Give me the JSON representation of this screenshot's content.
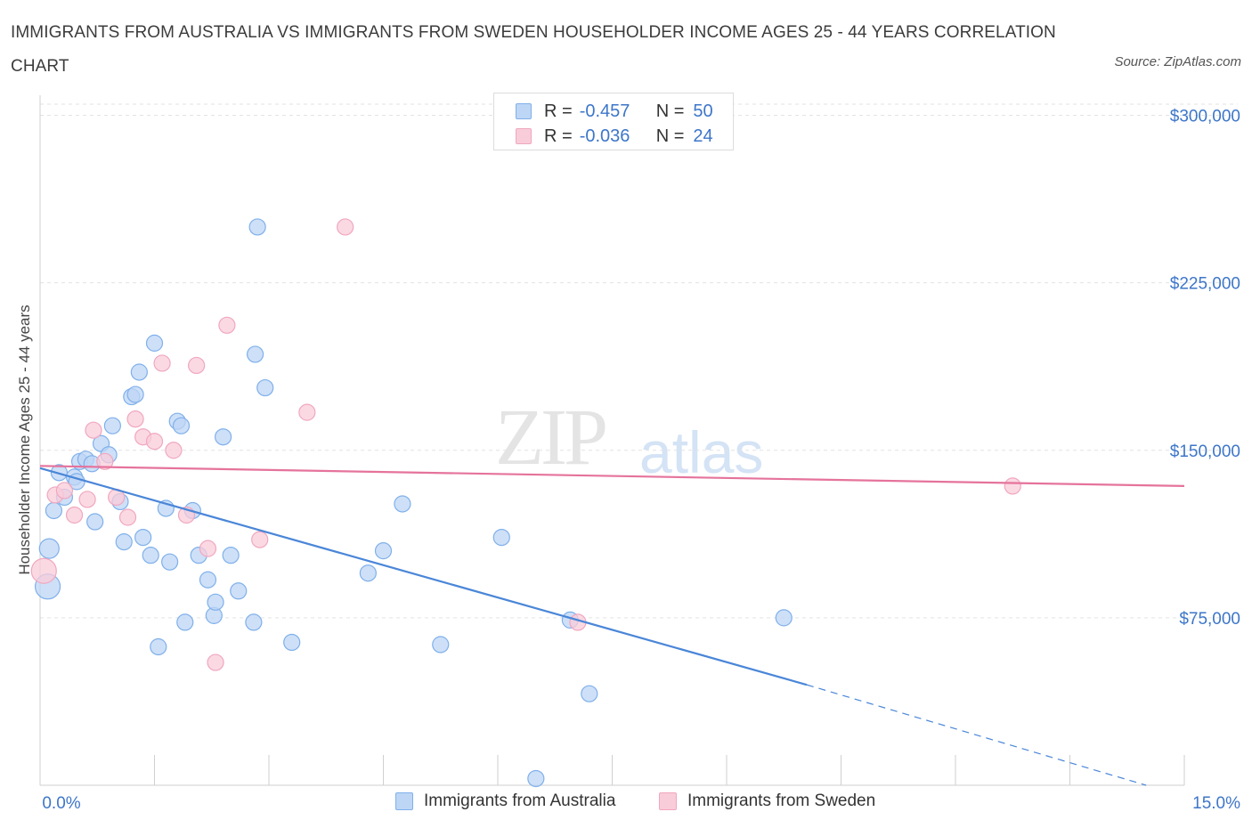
{
  "title": "IMMIGRANTS FROM AUSTRALIA VS IMMIGRANTS FROM SWEDEN HOUSEHOLDER INCOME AGES 25 - 44 YEARS CORRELATION CHART",
  "source": "Source: ZipAtlas.com",
  "watermark": {
    "zip": "ZIP",
    "atlas": "atlas"
  },
  "legend": {
    "r_label": "R =",
    "n_label": "N =",
    "rows": [
      {
        "r": "-0.457",
        "n": "50",
        "color": "#7fb0ea",
        "fill": "#bdd6f5"
      },
      {
        "r": "-0.036",
        "n": "24",
        "color": "#f0a7bf",
        "fill": "#f9ccd9"
      }
    ]
  },
  "chart_data": {
    "type": "scatter",
    "title": "IMMIGRANTS FROM AUSTRALIA VS IMMIGRANTS FROM SWEDEN HOUSEHOLDER INCOME AGES 25 - 44 YEARS CORRELATION CHART",
    "xlabel": "",
    "ylabel": "Householder Income Ages 25 - 44 years",
    "x_tick_labels": [
      "0.0%",
      "15.0%"
    ],
    "y_tick_labels": [
      "$300,000",
      "$225,000",
      "$150,000",
      "$75,000"
    ],
    "y_ticks": [
      300000,
      225000,
      150000,
      75000
    ],
    "xlim": [
      0,
      15
    ],
    "ylim": [
      0,
      305000
    ],
    "grid": true,
    "legend_position": "top-center",
    "series": [
      {
        "name": "Immigrants from Australia",
        "color": "#4a86d8",
        "fill": "#bdd6f5",
        "stroke": "#7fb0ea",
        "points": [
          [
            0.1,
            89000,
            14
          ],
          [
            0.12,
            106000,
            11
          ],
          [
            0.18,
            123000,
            9
          ],
          [
            0.25,
            140000,
            9
          ],
          [
            0.32,
            129000,
            9
          ],
          [
            0.45,
            138000,
            9
          ],
          [
            0.48,
            136000,
            9
          ],
          [
            0.52,
            145000,
            9
          ],
          [
            0.6,
            146000,
            9
          ],
          [
            0.68,
            144000,
            9
          ],
          [
            0.72,
            118000,
            9
          ],
          [
            0.8,
            153000,
            9
          ],
          [
            0.9,
            148000,
            9
          ],
          [
            0.95,
            161000,
            9
          ],
          [
            1.05,
            127000,
            9
          ],
          [
            1.1,
            109000,
            9
          ],
          [
            1.2,
            174000,
            9
          ],
          [
            1.25,
            175000,
            9
          ],
          [
            1.3,
            185000,
            9
          ],
          [
            1.35,
            111000,
            9
          ],
          [
            1.45,
            103000,
            9
          ],
          [
            1.5,
            198000,
            9
          ],
          [
            1.55,
            62000,
            9
          ],
          [
            1.65,
            124000,
            9
          ],
          [
            1.7,
            100000,
            9
          ],
          [
            1.8,
            163000,
            9
          ],
          [
            1.85,
            161000,
            9
          ],
          [
            1.9,
            73000,
            9
          ],
          [
            2.0,
            123000,
            9
          ],
          [
            2.08,
            103000,
            9
          ],
          [
            2.2,
            92000,
            9
          ],
          [
            2.28,
            76000,
            9
          ],
          [
            2.3,
            82000,
            9
          ],
          [
            2.4,
            156000,
            9
          ],
          [
            2.5,
            103000,
            9
          ],
          [
            2.6,
            87000,
            9
          ],
          [
            2.8,
            73000,
            9
          ],
          [
            2.82,
            193000,
            9
          ],
          [
            2.85,
            250000,
            9
          ],
          [
            2.95,
            178000,
            9
          ],
          [
            3.3,
            64000,
            9
          ],
          [
            4.3,
            95000,
            9
          ],
          [
            4.5,
            105000,
            9
          ],
          [
            4.75,
            126000,
            9
          ],
          [
            5.25,
            63000,
            9
          ],
          [
            6.05,
            111000,
            9
          ],
          [
            6.5,
            3000,
            9
          ],
          [
            6.95,
            74000,
            9
          ],
          [
            7.2,
            41000,
            9
          ],
          [
            9.75,
            75000,
            9
          ]
        ],
        "trend": {
          "x1": 0.0,
          "y1": 142000,
          "x2": 10.05,
          "y2": 45000,
          "dash_to_x": 14.5,
          "dash_to_y": 0
        }
      },
      {
        "name": "Immigrants from Sweden",
        "color": "#e5739b",
        "fill": "#f9ccd9",
        "stroke": "#f0a7bf",
        "points": [
          [
            0.05,
            96000,
            14
          ],
          [
            0.2,
            130000,
            9
          ],
          [
            0.32,
            132000,
            9
          ],
          [
            0.45,
            121000,
            9
          ],
          [
            0.62,
            128000,
            9
          ],
          [
            0.7,
            159000,
            9
          ],
          [
            0.85,
            145000,
            9
          ],
          [
            1.0,
            129000,
            9
          ],
          [
            1.15,
            120000,
            9
          ],
          [
            1.25,
            164000,
            9
          ],
          [
            1.35,
            156000,
            9
          ],
          [
            1.5,
            154000,
            9
          ],
          [
            1.6,
            189000,
            9
          ],
          [
            1.75,
            150000,
            9
          ],
          [
            1.92,
            121000,
            9
          ],
          [
            2.05,
            188000,
            9
          ],
          [
            2.2,
            106000,
            9
          ],
          [
            2.3,
            55000,
            9
          ],
          [
            2.45,
            206000,
            9
          ],
          [
            2.88,
            110000,
            9
          ],
          [
            3.5,
            167000,
            9
          ],
          [
            4.0,
            250000,
            9
          ],
          [
            7.05,
            73000,
            9
          ],
          [
            12.75,
            134000,
            9
          ]
        ],
        "trend": {
          "x1": 0.0,
          "y1": 143000,
          "x2": 15.0,
          "y2": 134000
        }
      }
    ]
  }
}
